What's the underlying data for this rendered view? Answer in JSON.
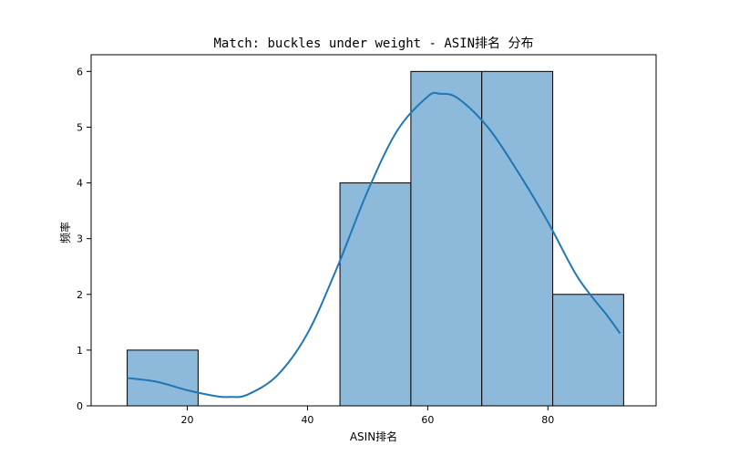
{
  "chart_data": {
    "type": "histogram",
    "title": "Match: buckles under weight - ASIN排名 分布",
    "xlabel": "ASIN排名",
    "ylabel": "频率",
    "xlim": [
      4,
      98
    ],
    "ylim": [
      0,
      6.3
    ],
    "xticks": [
      20,
      40,
      60,
      80
    ],
    "yticks": [
      0,
      1,
      2,
      3,
      4,
      5,
      6
    ],
    "bins": [
      {
        "x0": 10.0,
        "x1": 21.8,
        "count": 1
      },
      {
        "x0": 21.8,
        "x1": 33.6,
        "count": 0
      },
      {
        "x0": 33.6,
        "x1": 45.4,
        "count": 0
      },
      {
        "x0": 45.4,
        "x1": 57.2,
        "count": 4
      },
      {
        "x0": 57.2,
        "x1": 69.0,
        "count": 6
      },
      {
        "x0": 69.0,
        "x1": 80.8,
        "count": 6
      },
      {
        "x0": 80.8,
        "x1": 92.6,
        "count": 2
      }
    ],
    "kde": {
      "x": [
        10,
        15,
        20,
        25,
        27,
        30,
        35,
        40,
        45,
        50,
        55,
        60,
        62,
        65,
        70,
        75,
        80,
        85,
        90,
        92
      ],
      "y": [
        0.5,
        0.43,
        0.28,
        0.17,
        0.16,
        0.2,
        0.55,
        1.3,
        2.5,
        3.85,
        4.95,
        5.55,
        5.6,
        5.52,
        5.0,
        4.2,
        3.3,
        2.3,
        1.6,
        1.3
      ]
    },
    "grid": false,
    "colors": {
      "bar_fill": "#8db9da",
      "bar_edge": "#000000",
      "kde_line": "#1f77b4"
    }
  }
}
